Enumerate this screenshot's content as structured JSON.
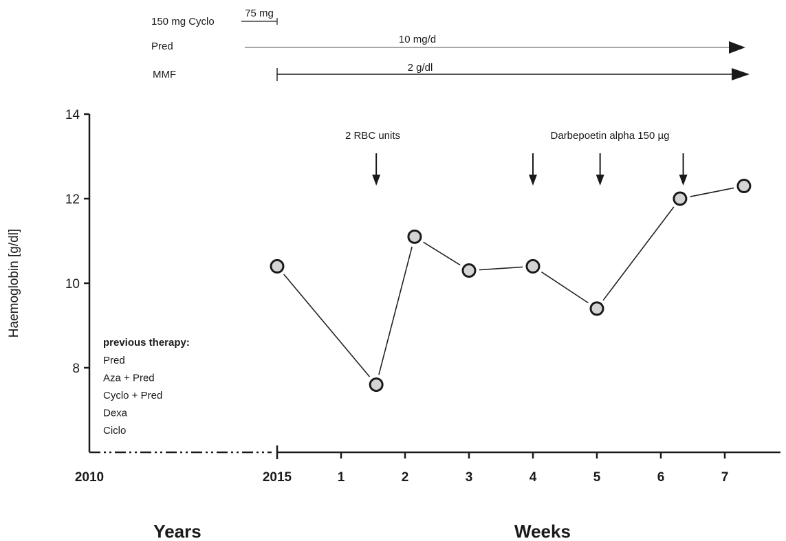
{
  "therapy_timeline": [
    {
      "drug": "150 mg Cyclo",
      "dose": "75 mg",
      "start_week": 0,
      "end_week": 0,
      "arrow": false
    },
    {
      "drug": "Pred",
      "dose": "10 mg/d",
      "start_week": 0,
      "end_week": 7.3,
      "arrow": true
    },
    {
      "drug": "MMF",
      "dose": "2 g/dl",
      "start_week": 0,
      "end_week": 7.3,
      "arrow": true
    }
  ],
  "annotations": {
    "rbc": {
      "label": "2 RBC units",
      "weeks": [
        1.55
      ]
    },
    "darbepoetin": {
      "label": "Darbepoetin alpha 150 µg",
      "weeks": [
        4.0,
        5.05,
        6.35
      ]
    }
  },
  "previous_therapy": {
    "title": "previous therapy:",
    "items": [
      "Pred",
      "Aza + Pred",
      "Cyclo + Pred",
      "Dexa",
      "Ciclo"
    ]
  },
  "chart_data": {
    "type": "line",
    "title": "",
    "ylabel": "Haemoglobin [g/dl]",
    "ylim": [
      6,
      14
    ],
    "y_ticks": [
      8,
      10,
      12,
      14
    ],
    "x_year_ticks": [
      "2010",
      "2015"
    ],
    "x_week_ticks": [
      1,
      2,
      3,
      4,
      5,
      6,
      7
    ],
    "xlabel_years": "Years",
    "xlabel_weeks": "Weeks",
    "series": [
      {
        "x": [
          0,
          1.55,
          2.15,
          3,
          4,
          5,
          6.3,
          7.3
        ],
        "y": [
          10.4,
          7.6,
          11.1,
          10.3,
          10.4,
          9.4,
          12.0,
          12.3
        ]
      }
    ],
    "marker_color": "#d4d4d4",
    "line_color": "#222222"
  }
}
